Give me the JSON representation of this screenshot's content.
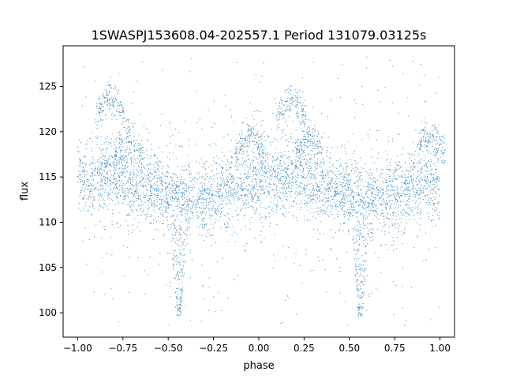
{
  "chart_data": {
    "type": "scatter",
    "title": "1SWASPJ153608.04-202557.1 Period 131079.03125s",
    "xlabel": "phase",
    "ylabel": "flux",
    "xlim": [
      -1.08,
      1.08
    ],
    "ylim": [
      97.3,
      129.5
    ],
    "xticks": [
      -1.0,
      -0.75,
      -0.5,
      -0.25,
      0.0,
      0.25,
      0.5,
      0.75,
      1.0
    ],
    "xtick_labels": [
      "−1.00",
      "−0.75",
      "−0.50",
      "−0.25",
      "0.00",
      "0.25",
      "0.50",
      "0.75",
      "1.00"
    ],
    "yticks": [
      100,
      105,
      110,
      115,
      120,
      125
    ],
    "ytick_labels": [
      "100",
      "105",
      "110",
      "115",
      "120",
      "125"
    ],
    "grid": false,
    "point_color": "#1f77b4",
    "series": [
      {
        "description_of_shape": "phase-folded light curve repeated over two cycles",
        "phase_range": [
          -1.0,
          1.0
        ],
        "baseline_flux": 113.3,
        "core_band": [
          110.5,
          117.5
        ],
        "profile": [
          {
            "x": -1.0,
            "y": 114.5
          },
          {
            "x": -0.9,
            "y": 114.8
          },
          {
            "x": -0.8,
            "y": 115.2
          },
          {
            "x": -0.7,
            "y": 114.2
          },
          {
            "x": -0.6,
            "y": 113.8
          },
          {
            "x": -0.5,
            "y": 113.2
          },
          {
            "x": -0.45,
            "y": 112.6
          },
          {
            "x": -0.4,
            "y": 112.4
          },
          {
            "x": -0.3,
            "y": 112.6
          },
          {
            "x": -0.2,
            "y": 113.6
          },
          {
            "x": -0.1,
            "y": 114.2
          },
          {
            "x": 0.0,
            "y": 114.5
          },
          {
            "x": 0.1,
            "y": 114.8
          },
          {
            "x": 0.2,
            "y": 115.2
          },
          {
            "x": 0.3,
            "y": 114.2
          },
          {
            "x": 0.4,
            "y": 113.8
          },
          {
            "x": 0.5,
            "y": 113.2
          },
          {
            "x": 0.55,
            "y": 112.6
          },
          {
            "x": 0.6,
            "y": 112.4
          },
          {
            "x": 0.7,
            "y": 112.6
          },
          {
            "x": 0.8,
            "y": 113.6
          },
          {
            "x": 0.9,
            "y": 114.2
          },
          {
            "x": 1.0,
            "y": 114.5
          }
        ],
        "upper_arcs": [
          {
            "x": -0.82,
            "y": 124.0
          },
          {
            "x": -0.72,
            "y": 119.5
          },
          {
            "x": -0.05,
            "y": 120.0
          },
          {
            "x": 0.18,
            "y": 124.0
          },
          {
            "x": 0.28,
            "y": 119.5
          },
          {
            "x": 0.95,
            "y": 120.0
          }
        ],
        "dips": [
          {
            "x": -0.44,
            "y": 99.5
          },
          {
            "x": 0.56,
            "y": 99.5
          }
        ]
      }
    ]
  }
}
